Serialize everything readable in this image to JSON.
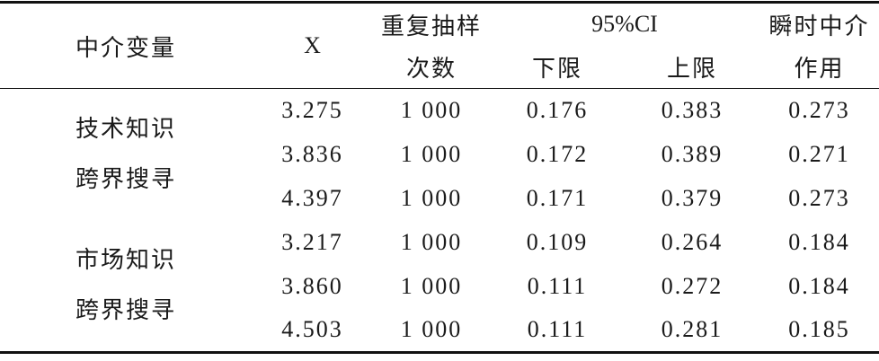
{
  "table": {
    "header": {
      "mediator": "中介变量",
      "x": "X",
      "resample": [
        "重复抽样",
        "次数"
      ],
      "ci": "95%CI",
      "ci_lower": "下限",
      "ci_upper": "上限",
      "effect": [
        "瞬时中介",
        "作用"
      ]
    },
    "groups": [
      {
        "label": [
          "技术知识",
          "跨界搜寻"
        ],
        "rows": [
          [
            "3.275",
            "1 000",
            "0.176",
            "0.383",
            "0.273"
          ],
          [
            "3.836",
            "1 000",
            "0.172",
            "0.389",
            "0.271"
          ],
          [
            "4.397",
            "1 000",
            "0.171",
            "0.379",
            "0.273"
          ]
        ]
      },
      {
        "label": [
          "市场知识",
          "跨界搜寻"
        ],
        "rows": [
          [
            "3.217",
            "1 000",
            "0.109",
            "0.264",
            "0.184"
          ],
          [
            "3.860",
            "1 000",
            "0.111",
            "0.272",
            "0.184"
          ],
          [
            "4.503",
            "1 000",
            "0.111",
            "0.281",
            "0.185"
          ]
        ]
      }
    ]
  }
}
